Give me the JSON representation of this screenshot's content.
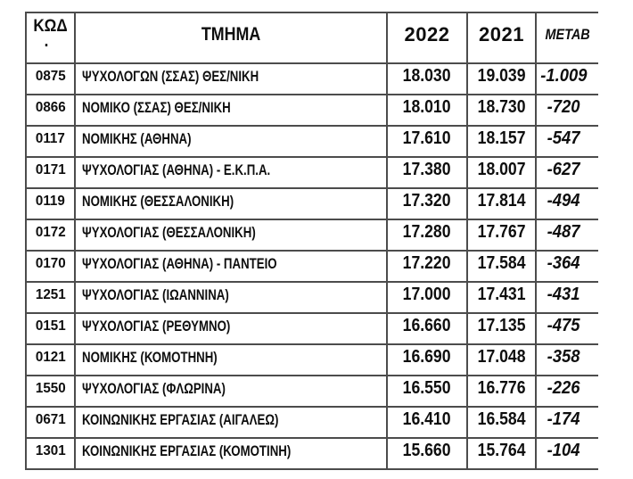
{
  "table": {
    "headers": {
      "code_line1": "ΚΩΔ",
      "code_line2": ".",
      "dept": "ΤΜΗΜΑ",
      "y2022": "2022",
      "y2021": "2021",
      "change": "ΜΕΤΑΒ"
    },
    "rows": [
      {
        "code": "0875",
        "dept": "ΨΥΧΟΛΟΓΩΝ (ΣΣΑΣ) ΘΕΣ/ΝΙΚΗ",
        "y2022": "18.030",
        "y2021": "19.039",
        "change": "-1.009"
      },
      {
        "code": "0866",
        "dept": "ΝΟΜΙΚΟ (ΣΣΑΣ) ΘΕΣ/ΝΙΚΗ",
        "y2022": "18.010",
        "y2021": "18.730",
        "change": "-720"
      },
      {
        "code": "0117",
        "dept": "ΝΟΜΙΚΗΣ (ΑΘΗΝΑ)",
        "y2022": "17.610",
        "y2021": "18.157",
        "change": "-547"
      },
      {
        "code": "0171",
        "dept": "ΨΥΧΟΛΟΓΙΑΣ (ΑΘΗΝΑ) - Ε.Κ.Π.Α.",
        "y2022": "17.380",
        "y2021": "18.007",
        "change": "-627"
      },
      {
        "code": "0119",
        "dept": "ΝΟΜΙΚΗΣ (ΘΕΣΣΑΛΟΝΙΚΗ)",
        "y2022": "17.320",
        "y2021": "17.814",
        "change": "-494"
      },
      {
        "code": "0172",
        "dept": "ΨΥΧΟΛΟΓΙΑΣ (ΘΕΣΣΑΛΟΝΙΚΗ)",
        "y2022": "17.280",
        "y2021": "17.767",
        "change": "-487"
      },
      {
        "code": "0170",
        "dept": "ΨΥΧΟΛΟΓΙΑΣ (ΑΘΗΝΑ) - ΠΑΝΤΕΙΟ",
        "y2022": "17.220",
        "y2021": "17.584",
        "change": "-364"
      },
      {
        "code": "1251",
        "dept": "ΨΥΧΟΛΟΓΙΑΣ (ΙΩΑΝΝΙΝΑ)",
        "y2022": "17.000",
        "y2021": "17.431",
        "change": "-431"
      },
      {
        "code": "0151",
        "dept": "ΨΥΧΟΛΟΓΙΑΣ (ΡΕΘΥΜΝΟ)",
        "y2022": "16.660",
        "y2021": "17.135",
        "change": "-475"
      },
      {
        "code": "0121",
        "dept": "ΝΟΜΙΚΗΣ (ΚΟΜΟΤΗΝΗ)",
        "y2022": "16.690",
        "y2021": "17.048",
        "change": "-358"
      },
      {
        "code": "1550",
        "dept": "ΨΥΧΟΛΟΓΙΑΣ (ΦΛΩΡΙΝΑ)",
        "y2022": "16.550",
        "y2021": "16.776",
        "change": "-226"
      },
      {
        "code": "0671",
        "dept": "ΚΟΙΝΩΝΙΚΗΣ ΕΡΓΑΣΙΑΣ (ΑΙΓΑΛΕΩ)",
        "y2022": "16.410",
        "y2021": "16.584",
        "change": "-174"
      },
      {
        "code": "1301",
        "dept": "ΚΟΙΝΩΝΙΚΗΣ ΕΡΓΑΣΙΑΣ (ΚΟΜΟΤΙΝΗ)",
        "y2022": "15.660",
        "y2021": "15.764",
        "change": "-104"
      }
    ]
  },
  "colors": {
    "text": "#0e0e0e",
    "border": "#4c4c4c",
    "background": "#ffffff"
  }
}
